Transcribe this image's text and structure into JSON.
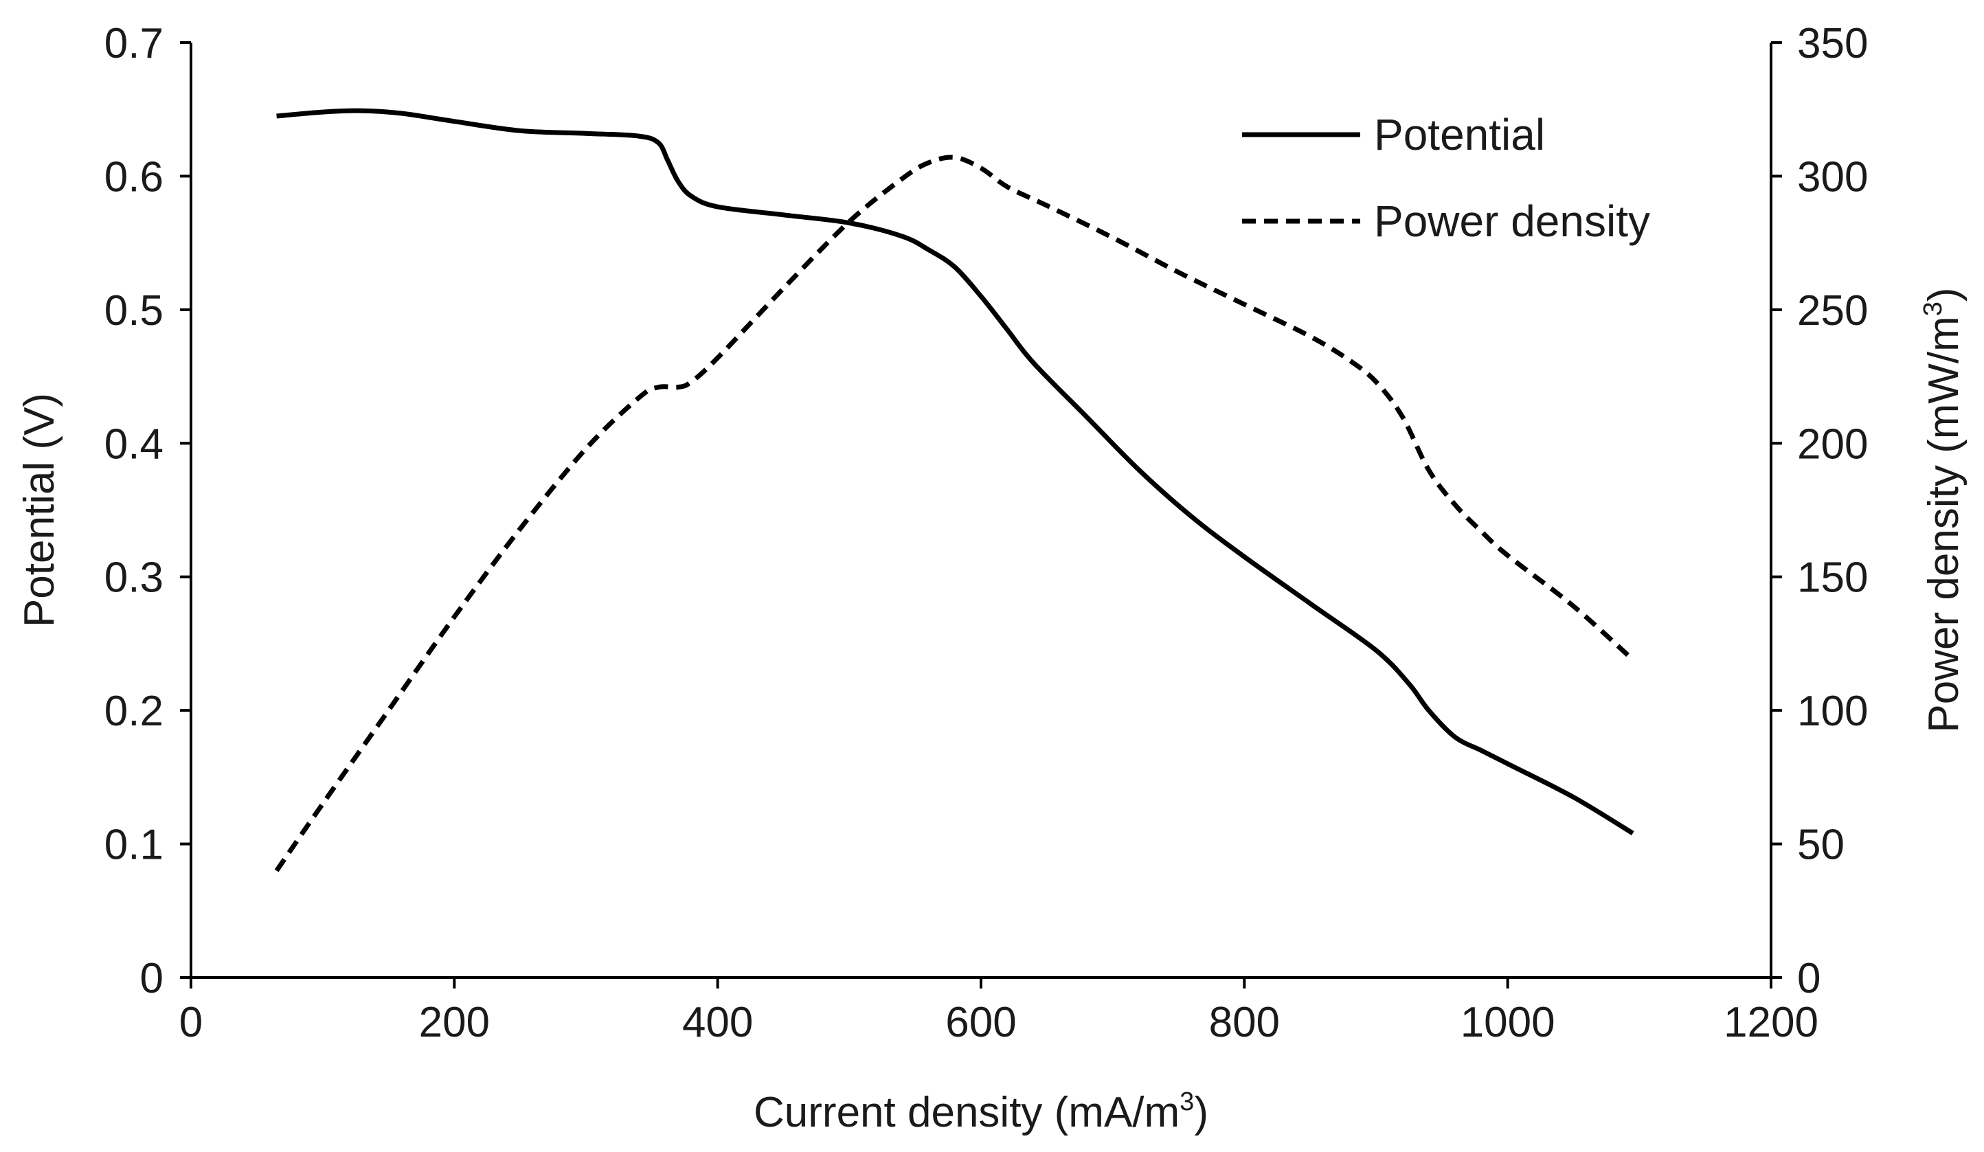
{
  "chart_data": {
    "type": "line",
    "title": "",
    "xlabel": "Current density (mA/m",
    "xlabel_sup": "3",
    "xlabel_close": ")",
    "ylabel": "Potential (V)",
    "y2label": "Power density (mW/m",
    "y2label_sup": "3",
    "y2label_close": ")",
    "xlim": [
      0,
      1200
    ],
    "ylim": [
      0,
      0.7
    ],
    "y2lim": [
      0,
      350
    ],
    "x_ticks": [
      0,
      200,
      400,
      600,
      800,
      1000,
      1200
    ],
    "x_tick_labels": [
      "0",
      "200",
      "400",
      "600",
      "800",
      "1000",
      "1200"
    ],
    "y_ticks": [
      0,
      0.1,
      0.2,
      0.3,
      0.4,
      0.5,
      0.6,
      0.7
    ],
    "y_tick_labels": [
      "0",
      "0.1",
      "0.2",
      "0.3",
      "0.4",
      "0.5",
      "0.6",
      "0.7"
    ],
    "y2_ticks": [
      0,
      50,
      100,
      150,
      200,
      250,
      300,
      350
    ],
    "y2_tick_labels": [
      "0",
      "50",
      "100",
      "150",
      "200",
      "250",
      "300",
      "350"
    ],
    "grid": false,
    "legend_position": "top-right",
    "series": [
      {
        "name": "Potential",
        "axis": "left",
        "style": "solid",
        "color": "#000000",
        "x": [
          65,
          100,
          130,
          160,
          200,
          250,
          300,
          340,
          355,
          362,
          370,
          380,
          400,
          450,
          500,
          540,
          560,
          580,
          600,
          620,
          640,
          680,
          720,
          760,
          800,
          850,
          900,
          925,
          940,
          960,
          980,
          1000,
          1050,
          1095
        ],
        "y": [
          0.645,
          0.648,
          0.649,
          0.647,
          0.641,
          0.634,
          0.632,
          0.63,
          0.625,
          0.612,
          0.596,
          0.585,
          0.577,
          0.571,
          0.565,
          0.555,
          0.545,
          0.532,
          0.51,
          0.485,
          0.46,
          0.42,
          0.38,
          0.345,
          0.315,
          0.28,
          0.245,
          0.22,
          0.2,
          0.18,
          0.17,
          0.16,
          0.135,
          0.108
        ]
      },
      {
        "name": "Power density",
        "axis": "right",
        "style": "dashed",
        "color": "#000000",
        "x": [
          65,
          100,
          150,
          200,
          250,
          300,
          340,
          355,
          370,
          380,
          400,
          450,
          500,
          540,
          560,
          580,
          600,
          620,
          650,
          700,
          750,
          800,
          850,
          880,
          900,
          920,
          940,
          960,
          980,
          1000,
          1050,
          1095
        ],
        "y": [
          40,
          65,
          100,
          135,
          168,
          198,
          217,
          221,
          221,
          223,
          232,
          258,
          283,
          299,
          305,
          307,
          303,
          296,
          289,
          277,
          264,
          252,
          240,
          231,
          223,
          210,
          190,
          177,
          167,
          158,
          139,
          119
        ]
      }
    ]
  }
}
